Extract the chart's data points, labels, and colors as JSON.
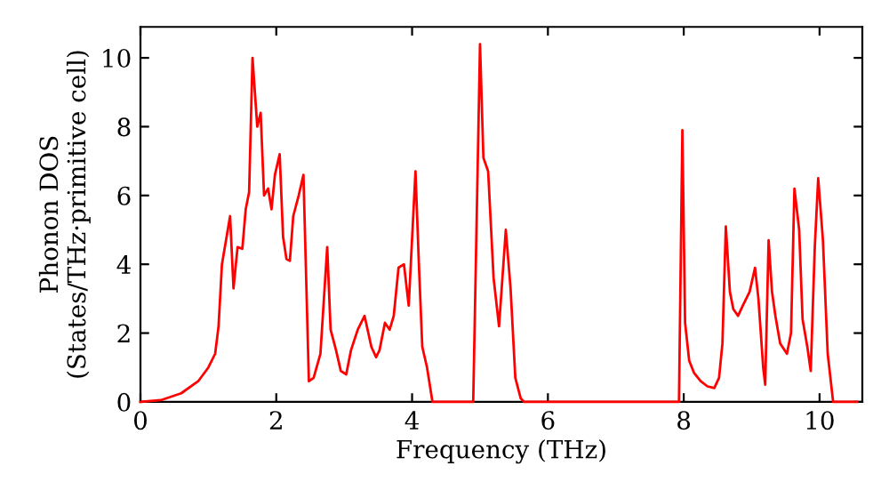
{
  "chart_data": {
    "type": "line",
    "xlabel": "Frequency (THz)",
    "ylabel": "Phonon DOS\n(States/THz·primitive cell)",
    "xlim": [
      0,
      10.63
    ],
    "ylim": [
      0,
      10.9
    ],
    "xticks": [
      0,
      2,
      4,
      6,
      8,
      10
    ],
    "yticks": [
      0,
      2,
      4,
      6,
      8,
      10
    ],
    "grid": false,
    "marker": "none",
    "line_style": "solid",
    "series": [
      {
        "color": "#ff0000",
        "x": [
          0,
          0.3,
          0.6,
          0.85,
          1.0,
          1.1,
          1.15,
          1.2,
          1.32,
          1.37,
          1.43,
          1.5,
          1.55,
          1.6,
          1.65,
          1.72,
          1.77,
          1.82,
          1.88,
          1.93,
          1.98,
          2.05,
          2.1,
          2.15,
          2.2,
          2.25,
          2.33,
          2.4,
          2.48,
          2.55,
          2.65,
          2.75,
          2.8,
          2.88,
          2.95,
          3.03,
          3.1,
          3.2,
          3.3,
          3.4,
          3.47,
          3.52,
          3.6,
          3.67,
          3.73,
          3.8,
          3.88,
          3.95,
          4.05,
          4.1,
          4.15,
          4.22,
          4.3,
          4.9,
          5.0,
          5.05,
          5.12,
          5.2,
          5.28,
          5.38,
          5.45,
          5.52,
          5.6,
          5.65,
          7.93,
          7.98,
          8.02,
          8.08,
          8.15,
          8.25,
          8.35,
          8.45,
          8.52,
          8.57,
          8.62,
          8.68,
          8.73,
          8.8,
          8.87,
          8.97,
          9.05,
          9.1,
          9.17,
          9.2,
          9.25,
          9.3,
          9.35,
          9.42,
          9.52,
          9.58,
          9.63,
          9.7,
          9.75,
          9.82,
          9.87,
          9.93,
          9.98,
          10.05,
          10.12,
          10.2,
          10.55
        ],
        "values": [
          0,
          0.05,
          0.25,
          0.6,
          1.0,
          1.4,
          2.2,
          4.0,
          5.4,
          3.3,
          4.5,
          4.45,
          5.6,
          6.1,
          10.0,
          8.0,
          8.4,
          6.0,
          6.2,
          5.6,
          6.6,
          7.2,
          4.8,
          4.15,
          4.1,
          5.4,
          6.0,
          6.6,
          0.6,
          0.7,
          1.4,
          4.5,
          2.1,
          1.5,
          0.9,
          0.8,
          1.5,
          2.1,
          2.5,
          1.6,
          1.3,
          1.5,
          2.3,
          2.1,
          2.5,
          3.9,
          4.0,
          2.8,
          6.7,
          4.0,
          1.6,
          1.0,
          0,
          0,
          10.4,
          7.1,
          6.7,
          3.6,
          2.2,
          5.0,
          3.3,
          0.7,
          0.1,
          0,
          0,
          7.9,
          2.3,
          1.2,
          0.85,
          0.6,
          0.45,
          0.4,
          0.7,
          1.7,
          5.1,
          3.2,
          2.7,
          2.5,
          2.8,
          3.2,
          3.9,
          3.0,
          1.0,
          0.5,
          4.7,
          3.2,
          2.5,
          1.7,
          1.4,
          2.0,
          6.2,
          5.0,
          2.4,
          1.6,
          0.9,
          4.5,
          6.5,
          4.7,
          1.4,
          0,
          0
        ]
      }
    ]
  }
}
